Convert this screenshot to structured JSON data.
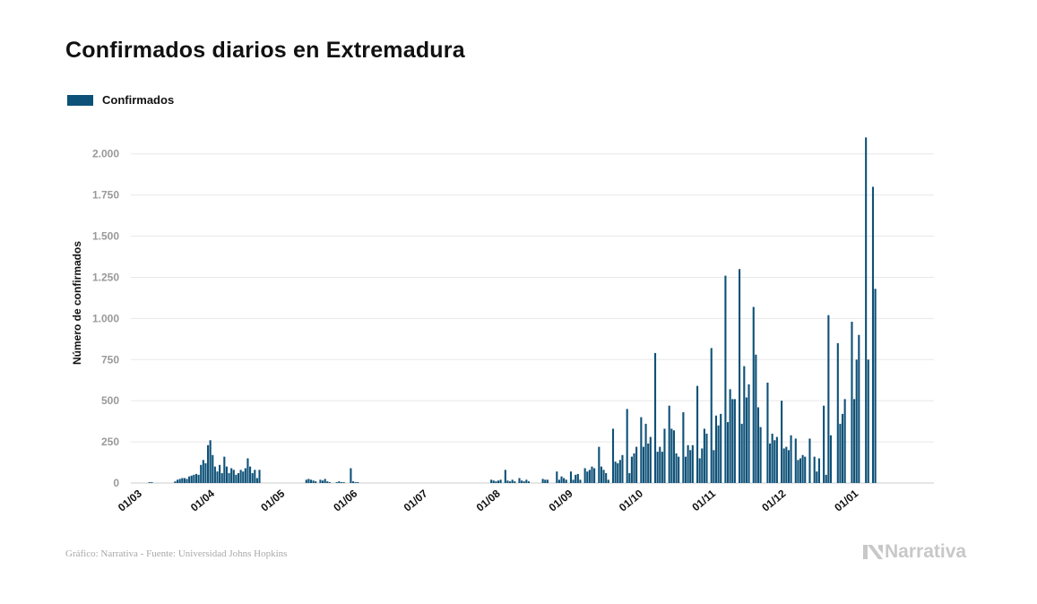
{
  "chart_data": {
    "type": "bar",
    "title": "Confirmados diarios en Extremadura",
    "ylabel": "Número de confirmados",
    "legend": [
      "Confirmados"
    ],
    "legend_placement": "top-left",
    "grid": true,
    "ylim": [
      0,
      2200
    ],
    "yticks": [
      0,
      250,
      500,
      750,
      1000,
      1250,
      1500,
      1750,
      2000
    ],
    "ytick_labels": [
      "0",
      "250",
      "500",
      "750",
      "1.000",
      "1.250",
      "1.500",
      "1.750",
      "2.000"
    ],
    "xtick_labels": [
      "01/03",
      "01/04",
      "01/05",
      "01/06",
      "01/07",
      "01/08",
      "01/09",
      "01/10",
      "01/11",
      "01/12",
      "01/01"
    ],
    "start_date": "2020-03-01",
    "series": [
      {
        "name": "Confirmados",
        "color": "#0e5178",
        "values": [
          0,
          0,
          0,
          0,
          0,
          0,
          5,
          5,
          0,
          0,
          0,
          0,
          0,
          0,
          0,
          0,
          0,
          10,
          20,
          25,
          30,
          30,
          25,
          40,
          45,
          50,
          55,
          50,
          110,
          140,
          120,
          230,
          260,
          170,
          100,
          70,
          110,
          60,
          160,
          100,
          60,
          90,
          80,
          50,
          60,
          80,
          70,
          90,
          150,
          100,
          60,
          80,
          30,
          80,
          0,
          0,
          0,
          0,
          0,
          0,
          0,
          0,
          0,
          0,
          0,
          0,
          0,
          0,
          0,
          0,
          0,
          0,
          0,
          20,
          25,
          20,
          15,
          10,
          0,
          20,
          15,
          25,
          10,
          5,
          0,
          0,
          5,
          10,
          5,
          5,
          0,
          0,
          90,
          10,
          5,
          5,
          0,
          0,
          0,
          0,
          0,
          0,
          0,
          0,
          0,
          0,
          0,
          0,
          0,
          0,
          0,
          0,
          0,
          0,
          0,
          0,
          0,
          0,
          0,
          0,
          0,
          0,
          0,
          0,
          0,
          0,
          0,
          0,
          0,
          0,
          0,
          0,
          0,
          0,
          0,
          0,
          0,
          0,
          0,
          0,
          0,
          0,
          0,
          0,
          0,
          0,
          0,
          0,
          0,
          0,
          0,
          0,
          20,
          15,
          10,
          15,
          20,
          0,
          80,
          15,
          10,
          20,
          10,
          0,
          30,
          15,
          10,
          20,
          10,
          0,
          0,
          0,
          0,
          0,
          25,
          20,
          20,
          0,
          0,
          0,
          70,
          20,
          40,
          30,
          20,
          0,
          70,
          20,
          50,
          55,
          20,
          0,
          90,
          70,
          80,
          100,
          90,
          0,
          220,
          100,
          80,
          60,
          20,
          0,
          330,
          130,
          120,
          140,
          170,
          0,
          450,
          60,
          160,
          180,
          220,
          0,
          400,
          220,
          360,
          240,
          280,
          0,
          790,
          190,
          220,
          190,
          330,
          0,
          470,
          330,
          320,
          180,
          160,
          0,
          430,
          160,
          230,
          200,
          230,
          0,
          590,
          150,
          210,
          330,
          300,
          0,
          820,
          200,
          410,
          350,
          420,
          0,
          1260,
          370,
          570,
          510,
          510,
          0,
          1300,
          360,
          710,
          520,
          600,
          0,
          1070,
          780,
          460,
          340,
          0,
          0,
          610,
          240,
          300,
          260,
          280,
          0,
          500,
          210,
          220,
          200,
          290,
          0,
          270,
          140,
          150,
          170,
          160,
          0,
          270,
          0,
          160,
          70,
          150,
          0,
          470,
          50,
          1020,
          290,
          0,
          0,
          850,
          360,
          420,
          510,
          0,
          0,
          980,
          510,
          750,
          900,
          0,
          0,
          2100,
          750,
          0,
          1800,
          1180
        ]
      }
    ]
  },
  "footer": {
    "source": "Gráfico: Narrativa - Fuente: Universidad Johns Hopkins",
    "brand": "Narrativa"
  }
}
